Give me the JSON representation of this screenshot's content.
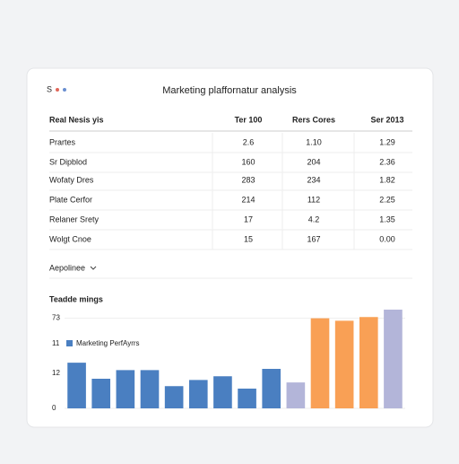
{
  "header": {
    "logo": "S",
    "title": "Marketing plaffornatur analysis"
  },
  "table": {
    "columns": [
      "Real Nesis yis",
      "Ter 100",
      "Rers Cores",
      "Ser 2013"
    ],
    "rows": [
      [
        "Prartes",
        "2.6",
        "1.10",
        "1.29"
      ],
      [
        "Sr Dipblod",
        "160",
        "204",
        "2.36"
      ],
      [
        "Wofaty Dres",
        "283",
        "234",
        "1.82"
      ],
      [
        "Plate Cerfor",
        "214",
        "112",
        "2.25"
      ],
      [
        "Relaner Srety",
        "17",
        "4.2",
        "1.35"
      ],
      [
        "Wolgt Cnoe",
        "15",
        "167",
        "0.00"
      ]
    ]
  },
  "dropdown": {
    "label": "Aepolinee"
  },
  "chart_data": {
    "type": "bar",
    "title": "Teadde mings",
    "values": [
      37,
      24,
      31,
      31,
      18,
      23,
      26,
      16,
      32,
      21,
      73,
      71,
      74,
      80
    ],
    "colors": [
      "#4a7fc1",
      "#4a7fc1",
      "#4a7fc1",
      "#4a7fc1",
      "#4a7fc1",
      "#4a7fc1",
      "#4a7fc1",
      "#4a7fc1",
      "#4a7fc1",
      "#b3b5d9",
      "#f9a055",
      "#f9a055",
      "#f9a055",
      "#b3b5d9"
    ],
    "legend": {
      "name": "Marketing PerfAyrrs",
      "color": "#4a7fc1"
    },
    "annotations": [
      "11",
      "12"
    ],
    "ylim": [
      0,
      80
    ],
    "yticks": [
      0,
      73
    ],
    "grid": true
  }
}
